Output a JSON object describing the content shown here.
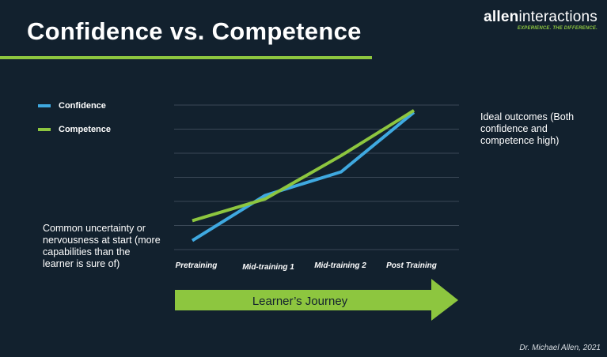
{
  "header": {
    "title": "Confidence vs. Competence"
  },
  "brand": {
    "name_bold": "allen",
    "name_light": "interactions",
    "tagline": "EXPERIENCE. THE DIFFERENCE."
  },
  "notes": {
    "left": "Common uncertainty or nervousness at start (more capabilities than the learner is sure of)",
    "right": "Ideal outcomes (Both confidence and competence high)"
  },
  "journey_label": "Learner’s Journey",
  "credit": "Dr. Michael Allen, 2021",
  "colors": {
    "background": "#12212e",
    "confidence": "#3fa9e0",
    "competence": "#8dc63f",
    "gridline": "#3a4856"
  },
  "chart_data": {
    "type": "line",
    "categories": [
      "Pretraining",
      "Mid-training 1",
      "Mid-training 2",
      "Post Training"
    ],
    "series": [
      {
        "name": "Confidence",
        "values": [
          0.5,
          3.0,
          4.3,
          7.6
        ]
      },
      {
        "name": "Competence",
        "values": [
          1.6,
          2.8,
          5.2,
          7.7
        ]
      }
    ],
    "ylim": [
      0,
      8
    ],
    "grid": true,
    "y_tick_labels": false,
    "legend_position": "left"
  }
}
